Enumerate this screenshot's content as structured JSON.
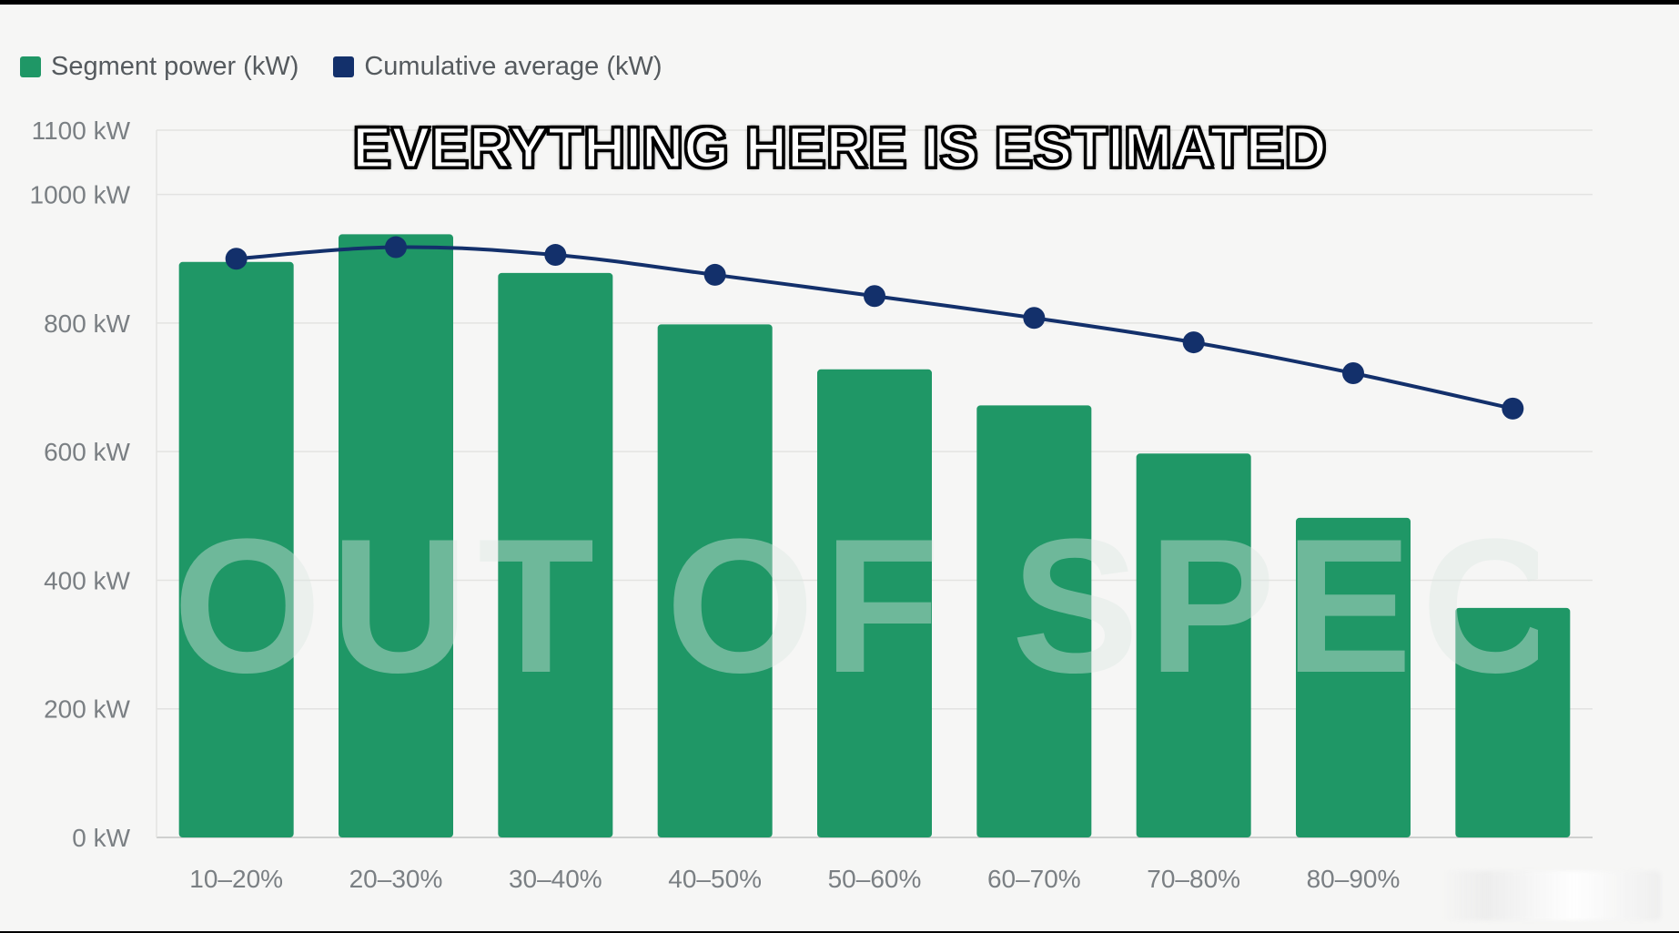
{
  "legend": {
    "segment_label": "Segment power (kW)",
    "cumulative_label": "Cumulative average (kW)"
  },
  "caption": "EVERYTHING HERE IS ESTIMATED",
  "watermark": "OUT OF SPEC",
  "colors": {
    "segment": "#1f9766",
    "cumulative": "#13306b",
    "grid": "#e3e3e1",
    "background": "#f6f6f5"
  },
  "chart_data": {
    "type": "bar",
    "categories": [
      "10–20%",
      "20–30%",
      "30–40%",
      "40–50%",
      "50–60%",
      "60–70%",
      "70–80%",
      "80–90%",
      ""
    ],
    "y_ticks": [
      "0 kW",
      "200 kW",
      "400 kW",
      "600 kW",
      "800 kW",
      "1000 kW",
      "1100 kW"
    ],
    "y_tick_values": [
      0,
      200,
      400,
      600,
      800,
      1000,
      1100
    ],
    "ylim": [
      0,
      1100
    ],
    "grid": true,
    "legend_position": "top-left",
    "series": [
      {
        "name": "Segment power (kW)",
        "type": "bar",
        "values": [
          895,
          938,
          878,
          798,
          728,
          672,
          597,
          497,
          357
        ]
      },
      {
        "name": "Cumulative average (kW)",
        "type": "line",
        "values": [
          900,
          918,
          906,
          875,
          842,
          808,
          770,
          722,
          667
        ]
      }
    ]
  }
}
